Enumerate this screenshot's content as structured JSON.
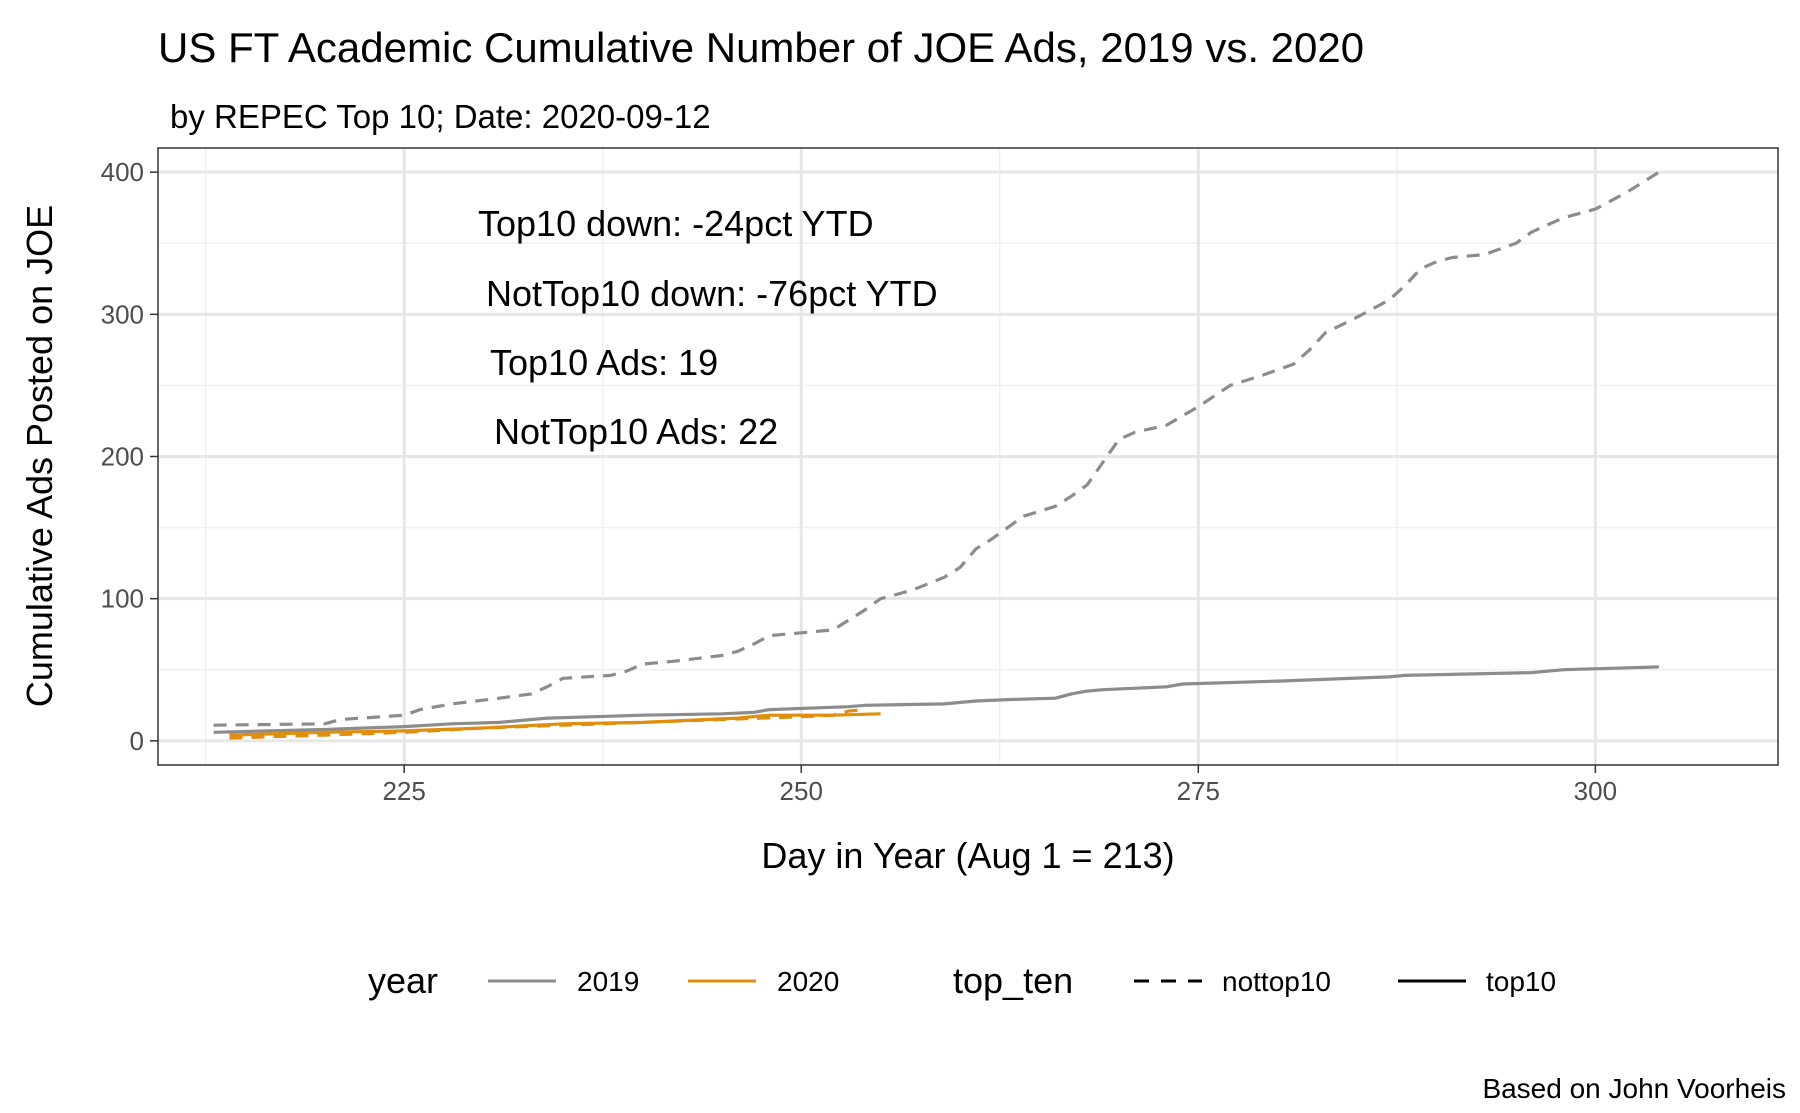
{
  "chart_data": {
    "type": "line",
    "title": "US FT Academic Cumulative Number of JOE Ads, 2019 vs. 2020",
    "subtitle": "by REPEC Top 10; Date: 2020-09-12",
    "xlabel": "Day in Year (Aug 1 = 213)",
    "ylabel": "Cumulative Ads Posted on JOE",
    "caption": "Based on John Voorheis",
    "xlim": [
      209.5,
      311.5
    ],
    "ylim": [
      -17,
      417
    ],
    "x_ticks": [
      225,
      250,
      275,
      300
    ],
    "y_ticks": [
      0,
      100,
      200,
      300,
      400
    ],
    "grid": true,
    "annotations": [
      "Top10 down: -24pct YTD",
      "NotTop10 down: -76pct YTD",
      "Top10 Ads: 19",
      "NotTop10 Ads: 22"
    ],
    "legend": {
      "position": "bottom",
      "groups": [
        {
          "title": "year",
          "entries": [
            {
              "label": "2019",
              "color": "#8c8c8c"
            },
            {
              "label": "2020",
              "color": "#e08e0b"
            }
          ]
        },
        {
          "title": "top_ten",
          "entries": [
            {
              "label": "nottop10",
              "dash": "dashed"
            },
            {
              "label": "top10",
              "dash": "solid"
            }
          ]
        }
      ]
    },
    "series": [
      {
        "year": "2019",
        "top_ten": "nottop10",
        "color": "#8c8c8c",
        "dash": "dashed",
        "points": [
          [
            213,
            11
          ],
          [
            220,
            12
          ],
          [
            221,
            15
          ],
          [
            225,
            18
          ],
          [
            226,
            22
          ],
          [
            228,
            26
          ],
          [
            231,
            30
          ],
          [
            233,
            33
          ],
          [
            234,
            38
          ],
          [
            235,
            44
          ],
          [
            238,
            46
          ],
          [
            239,
            49
          ],
          [
            240,
            54
          ],
          [
            242,
            56
          ],
          [
            245,
            60
          ],
          [
            246,
            63
          ],
          [
            247,
            68
          ],
          [
            248,
            74
          ],
          [
            250,
            76
          ],
          [
            252,
            78
          ],
          [
            253,
            85
          ],
          [
            254,
            92
          ],
          [
            255,
            100
          ],
          [
            257,
            106
          ],
          [
            259,
            115
          ],
          [
            260,
            122
          ],
          [
            261,
            135
          ],
          [
            262,
            142
          ],
          [
            263,
            150
          ],
          [
            264,
            158
          ],
          [
            266,
            165
          ],
          [
            267,
            172
          ],
          [
            268,
            180
          ],
          [
            269,
            196
          ],
          [
            270,
            212
          ],
          [
            271,
            217
          ],
          [
            273,
            222
          ],
          [
            275,
            235
          ],
          [
            277,
            250
          ],
          [
            279,
            257
          ],
          [
            281,
            265
          ],
          [
            282,
            275
          ],
          [
            283,
            287
          ],
          [
            285,
            298
          ],
          [
            287,
            310
          ],
          [
            288,
            320
          ],
          [
            289,
            332
          ],
          [
            290,
            337
          ],
          [
            291,
            340
          ],
          [
            293,
            342
          ],
          [
            295,
            350
          ],
          [
            296,
            358
          ],
          [
            298,
            368
          ],
          [
            300,
            374
          ],
          [
            302,
            386
          ],
          [
            304,
            400
          ]
        ]
      },
      {
        "year": "2019",
        "top_ten": "top10",
        "color": "#8c8c8c",
        "dash": "solid",
        "points": [
          [
            213,
            6
          ],
          [
            220,
            8
          ],
          [
            225,
            10
          ],
          [
            228,
            12
          ],
          [
            231,
            13
          ],
          [
            234,
            16
          ],
          [
            237,
            17
          ],
          [
            240,
            18
          ],
          [
            245,
            19
          ],
          [
            247,
            20
          ],
          [
            248,
            22
          ],
          [
            253,
            24
          ],
          [
            254,
            25
          ],
          [
            259,
            26
          ],
          [
            261,
            28
          ],
          [
            263,
            29
          ],
          [
            266,
            30
          ],
          [
            267,
            33
          ],
          [
            268,
            35
          ],
          [
            269,
            36
          ],
          [
            273,
            38
          ],
          [
            274,
            40
          ],
          [
            280,
            42
          ],
          [
            287,
            45
          ],
          [
            288,
            46
          ],
          [
            296,
            48
          ],
          [
            298,
            50
          ],
          [
            304,
            52
          ]
        ]
      },
      {
        "year": "2020",
        "top_ten": "nottop10",
        "color": "#e08e0b",
        "dash": "dashed",
        "points": [
          [
            214,
            2
          ],
          [
            220,
            4
          ],
          [
            225,
            6
          ],
          [
            230,
            9
          ],
          [
            235,
            11
          ],
          [
            240,
            13
          ],
          [
            245,
            15
          ],
          [
            250,
            17
          ],
          [
            252,
            18
          ],
          [
            253,
            21
          ],
          [
            254,
            22
          ]
        ]
      },
      {
        "year": "2020",
        "top_ten": "top10",
        "color": "#e08e0b",
        "dash": "solid",
        "points": [
          [
            214,
            4
          ],
          [
            220,
            6
          ],
          [
            225,
            7
          ],
          [
            230,
            9
          ],
          [
            235,
            12
          ],
          [
            240,
            13
          ],
          [
            246,
            16
          ],
          [
            248,
            18
          ],
          [
            252,
            18
          ],
          [
            255,
            19
          ]
        ]
      }
    ]
  }
}
